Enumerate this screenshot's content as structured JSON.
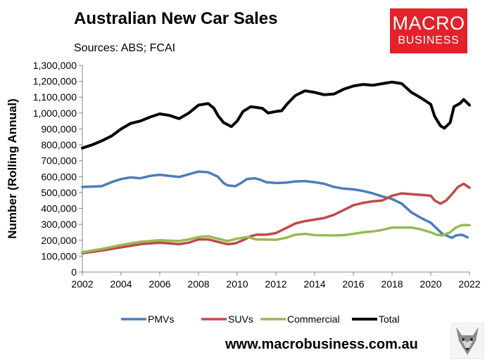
{
  "header": {
    "title": "Australian New Car Sales",
    "subtitle": "Sources: ABS; FCAI"
  },
  "logo": {
    "line1": "MACRO",
    "line2": "BUSINESS",
    "color": "#e3222b"
  },
  "footer": {
    "website": "www.macrobusiness.com.au",
    "mascot_icon": "wolf-icon"
  },
  "chart_data": {
    "type": "line",
    "title": "Australian New Car Sales",
    "subtitle": "Sources: ABS; FCAI",
    "xlabel": "",
    "ylabel": "Number (Rolling Annual)",
    "xlim": [
      2002,
      2022
    ],
    "ylim": [
      0,
      1300000
    ],
    "x_ticks": [
      2002,
      2004,
      2006,
      2008,
      2010,
      2012,
      2014,
      2016,
      2018,
      2020,
      2022
    ],
    "x_tick_labels": [
      "2002",
      "2004",
      "2006",
      "2008",
      "2010",
      "2012",
      "2014",
      "2016",
      "2018",
      "2020",
      "2022"
    ],
    "y_ticks": [
      0,
      100000,
      200000,
      300000,
      400000,
      500000,
      600000,
      700000,
      800000,
      900000,
      1000000,
      1100000,
      1200000,
      1300000
    ],
    "y_tick_labels": [
      "0",
      "100,000",
      "200,000",
      "300,000",
      "400,000",
      "500,000",
      "600,000",
      "700,000",
      "800,000",
      "900,000",
      "1,000,000",
      "1,100,000",
      "1,200,000",
      "1,300,000"
    ],
    "grid": false,
    "legend_position": "bottom",
    "series": [
      {
        "name": "PMVs",
        "color": "#4a7ebb",
        "points": [
          [
            2002.0,
            535000
          ],
          [
            2003.0,
            540000
          ],
          [
            2003.5,
            565000
          ],
          [
            2004.0,
            585000
          ],
          [
            2004.5,
            595000
          ],
          [
            2005.0,
            590000
          ],
          [
            2005.5,
            605000
          ],
          [
            2006.0,
            612000
          ],
          [
            2006.5,
            605000
          ],
          [
            2007.0,
            598000
          ],
          [
            2007.5,
            615000
          ],
          [
            2008.0,
            632000
          ],
          [
            2008.5,
            628000
          ],
          [
            2009.0,
            600000
          ],
          [
            2009.3,
            560000
          ],
          [
            2009.5,
            545000
          ],
          [
            2009.9,
            540000
          ],
          [
            2010.2,
            560000
          ],
          [
            2010.5,
            585000
          ],
          [
            2010.9,
            590000
          ],
          [
            2011.2,
            580000
          ],
          [
            2011.5,
            565000
          ],
          [
            2012.0,
            560000
          ],
          [
            2012.5,
            562000
          ],
          [
            2013.0,
            570000
          ],
          [
            2013.5,
            572000
          ],
          [
            2014.0,
            565000
          ],
          [
            2014.5,
            555000
          ],
          [
            2015.0,
            535000
          ],
          [
            2015.5,
            525000
          ],
          [
            2016.0,
            520000
          ],
          [
            2016.5,
            510000
          ],
          [
            2017.0,
            495000
          ],
          [
            2017.5,
            475000
          ],
          [
            2018.0,
            460000
          ],
          [
            2018.5,
            430000
          ],
          [
            2019.0,
            375000
          ],
          [
            2019.5,
            340000
          ],
          [
            2020.0,
            310000
          ],
          [
            2020.3,
            275000
          ],
          [
            2020.6,
            240000
          ],
          [
            2020.9,
            225000
          ],
          [
            2021.1,
            215000
          ],
          [
            2021.3,
            230000
          ],
          [
            2021.6,
            235000
          ],
          [
            2021.9,
            218000
          ]
        ]
      },
      {
        "name": "SUVs",
        "color": "#be4b48",
        "points": [
          [
            2002.0,
            118000
          ],
          [
            2003.0,
            135000
          ],
          [
            2004.0,
            155000
          ],
          [
            2005.0,
            175000
          ],
          [
            2006.0,
            185000
          ],
          [
            2006.5,
            180000
          ],
          [
            2007.0,
            175000
          ],
          [
            2007.5,
            185000
          ],
          [
            2008.0,
            205000
          ],
          [
            2008.5,
            205000
          ],
          [
            2009.0,
            190000
          ],
          [
            2009.5,
            175000
          ],
          [
            2009.9,
            180000
          ],
          [
            2010.3,
            200000
          ],
          [
            2010.7,
            225000
          ],
          [
            2011.0,
            235000
          ],
          [
            2011.5,
            235000
          ],
          [
            2012.0,
            245000
          ],
          [
            2012.5,
            275000
          ],
          [
            2013.0,
            305000
          ],
          [
            2013.5,
            320000
          ],
          [
            2014.0,
            330000
          ],
          [
            2014.5,
            340000
          ],
          [
            2015.0,
            360000
          ],
          [
            2015.5,
            390000
          ],
          [
            2016.0,
            420000
          ],
          [
            2016.5,
            435000
          ],
          [
            2017.0,
            445000
          ],
          [
            2017.5,
            450000
          ],
          [
            2018.0,
            480000
          ],
          [
            2018.5,
            495000
          ],
          [
            2019.0,
            490000
          ],
          [
            2019.5,
            485000
          ],
          [
            2020.0,
            480000
          ],
          [
            2020.2,
            450000
          ],
          [
            2020.5,
            430000
          ],
          [
            2020.8,
            450000
          ],
          [
            2021.1,
            490000
          ],
          [
            2021.4,
            535000
          ],
          [
            2021.7,
            555000
          ],
          [
            2022.0,
            530000
          ]
        ]
      },
      {
        "name": "Commercial",
        "color": "#98b954",
        "points": [
          [
            2002.0,
            125000
          ],
          [
            2003.0,
            145000
          ],
          [
            2004.0,
            170000
          ],
          [
            2005.0,
            190000
          ],
          [
            2006.0,
            200000
          ],
          [
            2007.0,
            195000
          ],
          [
            2007.5,
            205000
          ],
          [
            2008.0,
            220000
          ],
          [
            2008.5,
            225000
          ],
          [
            2009.0,
            210000
          ],
          [
            2009.5,
            195000
          ],
          [
            2010.0,
            210000
          ],
          [
            2010.5,
            220000
          ],
          [
            2011.0,
            205000
          ],
          [
            2012.0,
            203000
          ],
          [
            2012.5,
            215000
          ],
          [
            2013.0,
            235000
          ],
          [
            2013.5,
            240000
          ],
          [
            2014.0,
            232000
          ],
          [
            2015.0,
            230000
          ],
          [
            2015.5,
            232000
          ],
          [
            2016.0,
            240000
          ],
          [
            2016.5,
            250000
          ],
          [
            2017.0,
            255000
          ],
          [
            2017.5,
            265000
          ],
          [
            2018.0,
            280000
          ],
          [
            2019.0,
            280000
          ],
          [
            2019.5,
            268000
          ],
          [
            2020.0,
            250000
          ],
          [
            2020.3,
            235000
          ],
          [
            2020.6,
            230000
          ],
          [
            2021.0,
            250000
          ],
          [
            2021.3,
            280000
          ],
          [
            2021.6,
            295000
          ],
          [
            2022.0,
            295000
          ]
        ]
      },
      {
        "name": "Total",
        "color": "#000000",
        "points": [
          [
            2002.0,
            780000
          ],
          [
            2002.5,
            800000
          ],
          [
            2003.0,
            825000
          ],
          [
            2003.5,
            855000
          ],
          [
            2004.0,
            900000
          ],
          [
            2004.5,
            935000
          ],
          [
            2005.0,
            950000
          ],
          [
            2005.5,
            975000
          ],
          [
            2006.0,
            995000
          ],
          [
            2006.5,
            985000
          ],
          [
            2007.0,
            965000
          ],
          [
            2007.5,
            1000000
          ],
          [
            2008.0,
            1050000
          ],
          [
            2008.5,
            1060000
          ],
          [
            2008.8,
            1030000
          ],
          [
            2009.0,
            985000
          ],
          [
            2009.3,
            940000
          ],
          [
            2009.7,
            915000
          ],
          [
            2010.0,
            950000
          ],
          [
            2010.3,
            1010000
          ],
          [
            2010.7,
            1040000
          ],
          [
            2011.0,
            1035000
          ],
          [
            2011.3,
            1030000
          ],
          [
            2011.6,
            1000000
          ],
          [
            2012.0,
            1010000
          ],
          [
            2012.3,
            1015000
          ],
          [
            2012.6,
            1060000
          ],
          [
            2013.0,
            1110000
          ],
          [
            2013.5,
            1140000
          ],
          [
            2014.0,
            1130000
          ],
          [
            2014.5,
            1115000
          ],
          [
            2015.0,
            1120000
          ],
          [
            2015.5,
            1150000
          ],
          [
            2016.0,
            1170000
          ],
          [
            2016.5,
            1180000
          ],
          [
            2017.0,
            1175000
          ],
          [
            2017.5,
            1185000
          ],
          [
            2018.0,
            1195000
          ],
          [
            2018.5,
            1185000
          ],
          [
            2019.0,
            1130000
          ],
          [
            2019.5,
            1095000
          ],
          [
            2020.0,
            1055000
          ],
          [
            2020.2,
            980000
          ],
          [
            2020.5,
            920000
          ],
          [
            2020.7,
            905000
          ],
          [
            2021.0,
            940000
          ],
          [
            2021.2,
            1040000
          ],
          [
            2021.5,
            1060000
          ],
          [
            2021.7,
            1085000
          ],
          [
            2022.0,
            1050000
          ]
        ]
      }
    ]
  }
}
